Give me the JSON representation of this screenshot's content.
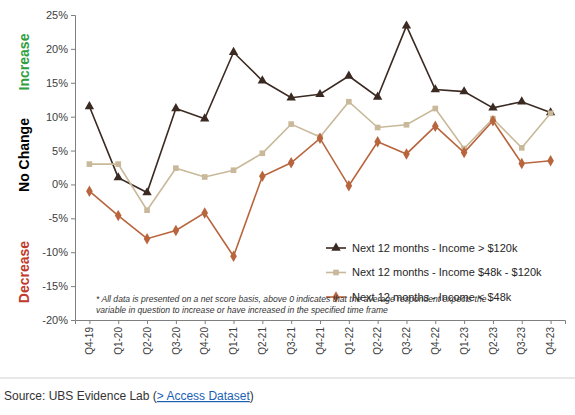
{
  "chart_data": {
    "type": "line",
    "categories": [
      "Q4-19",
      "Q1-20",
      "Q2-20",
      "Q3-20",
      "Q4-20",
      "Q1-21",
      "Q2-21",
      "Q3-21",
      "Q4-21",
      "Q1-22",
      "Q2-22",
      "Q3-22",
      "Q4-22",
      "Q1-23",
      "Q2-23",
      "Q3-23",
      "Q4-23"
    ],
    "series": [
      {
        "name": "Next 12 months - Income > $120k",
        "color": "#3b2a22",
        "marker": "triangle",
        "line_style": "solid",
        "values": [
          11.5,
          1,
          -1.2,
          11.2,
          9.7,
          19.5,
          15.3,
          12.8,
          13.3,
          16,
          12.9,
          23.4,
          14,
          13.7,
          11.3,
          12.2,
          10.6
        ]
      },
      {
        "name": "Next 12 months - Income $48k - $120k",
        "color": "#c9b99a",
        "marker": "square",
        "line_style": "solid",
        "values": [
          3,
          3,
          -3.8,
          2.4,
          1.1,
          2.1,
          4.6,
          8.9,
          7,
          12.2,
          8.4,
          8.8,
          11.2,
          5.3,
          9.7,
          5.4,
          10.5
        ]
      },
      {
        "name": "Next 12 months - Income < $48k",
        "color": "#b8653d",
        "marker": "diamond",
        "line_style": "solid",
        "values": [
          -1,
          -4.6,
          -8,
          -6.8,
          -4.2,
          -10.6,
          1.2,
          3.2,
          6.8,
          -0.2,
          6.3,
          4.5,
          8.6,
          4.7,
          9.4,
          3.1,
          3.5
        ]
      }
    ],
    "ylim": [
      -20,
      25
    ],
    "yticks": [
      {
        "value": -20,
        "label": "-20%"
      },
      {
        "value": -15,
        "label": "-15%"
      },
      {
        "value": -10,
        "label": "-10%"
      },
      {
        "value": -5,
        "label": "-5%"
      },
      {
        "value": 0,
        "label": "0%"
      },
      {
        "value": 5,
        "label": "5%"
      },
      {
        "value": 10,
        "label": "10%"
      },
      {
        "value": 15,
        "label": "15%"
      },
      {
        "value": 20,
        "label": "20%"
      },
      {
        "value": 25,
        "label": "25%"
      }
    ],
    "grid": false,
    "legend": "right",
    "annotations": [
      "Increase",
      "No Change",
      "Decrease"
    ],
    "note": [
      "* All data is presented on a net score basis, above 0 indicates that the average respondent expects the",
      "variable in question to increase or have increased in the specified time frame"
    ],
    "source": "Source: UBS Evidence Lab (> Access Dataset)"
  }
}
